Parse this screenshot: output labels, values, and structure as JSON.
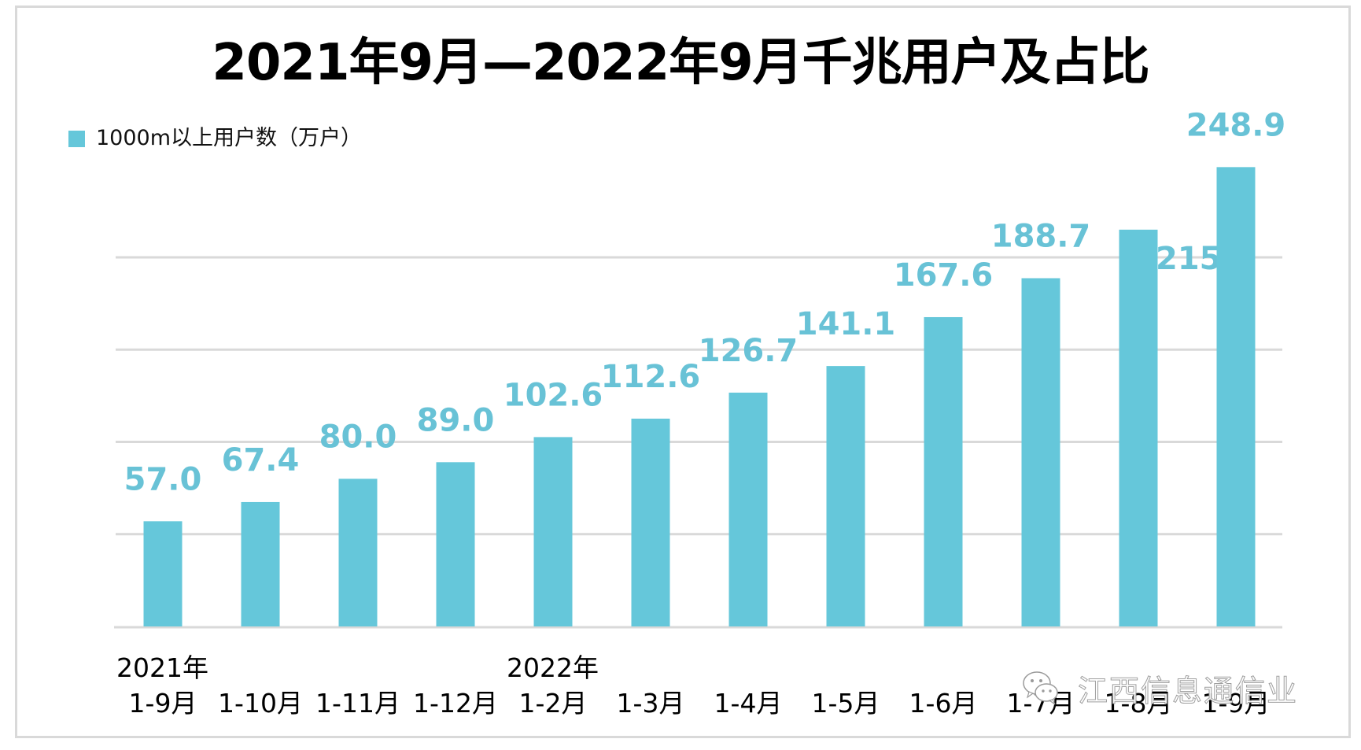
{
  "colors": {
    "bar": "#65c7da",
    "label": "#68c2d6",
    "grid": "#d9d9d9",
    "text": "#111111"
  },
  "chart_data": {
    "type": "bar",
    "title": "2021年9月—2022年9月千兆用户及占比",
    "xlabel": "",
    "ylabel": "",
    "ylim": [
      0,
      250
    ],
    "grid": true,
    "gridlines": [
      50,
      100,
      150,
      200
    ],
    "legend": {
      "placement": "top-left",
      "entries": [
        "1000m以上用户数（万户）"
      ]
    },
    "categories": [
      "1-9月",
      "1-10月",
      "1-11月",
      "1-12月",
      "1-2月",
      "1-3月",
      "1-4月",
      "1-5月",
      "1-6月",
      "1-7月",
      "1-8月",
      "1-9月"
    ],
    "year_labels": [
      {
        "index": 0,
        "text": "2021年"
      },
      {
        "index": 4,
        "text": "2022年"
      }
    ],
    "series": [
      {
        "name": "1000m以上用户数（万户）",
        "values": [
          57.0,
          67.4,
          80.0,
          89.0,
          102.6,
          112.6,
          126.7,
          141.1,
          167.6,
          188.7,
          215,
          248.9
        ],
        "data_labels": [
          "57.0",
          "67.4",
          "80.0",
          "89.0",
          "102.6",
          "112.6",
          "126.7",
          "141.1",
          "167.6",
          "188.7",
          "215.",
          "248.9"
        ]
      }
    ]
  },
  "watermark": {
    "icon": "wechat-icon",
    "text": "江西信息通信业"
  }
}
